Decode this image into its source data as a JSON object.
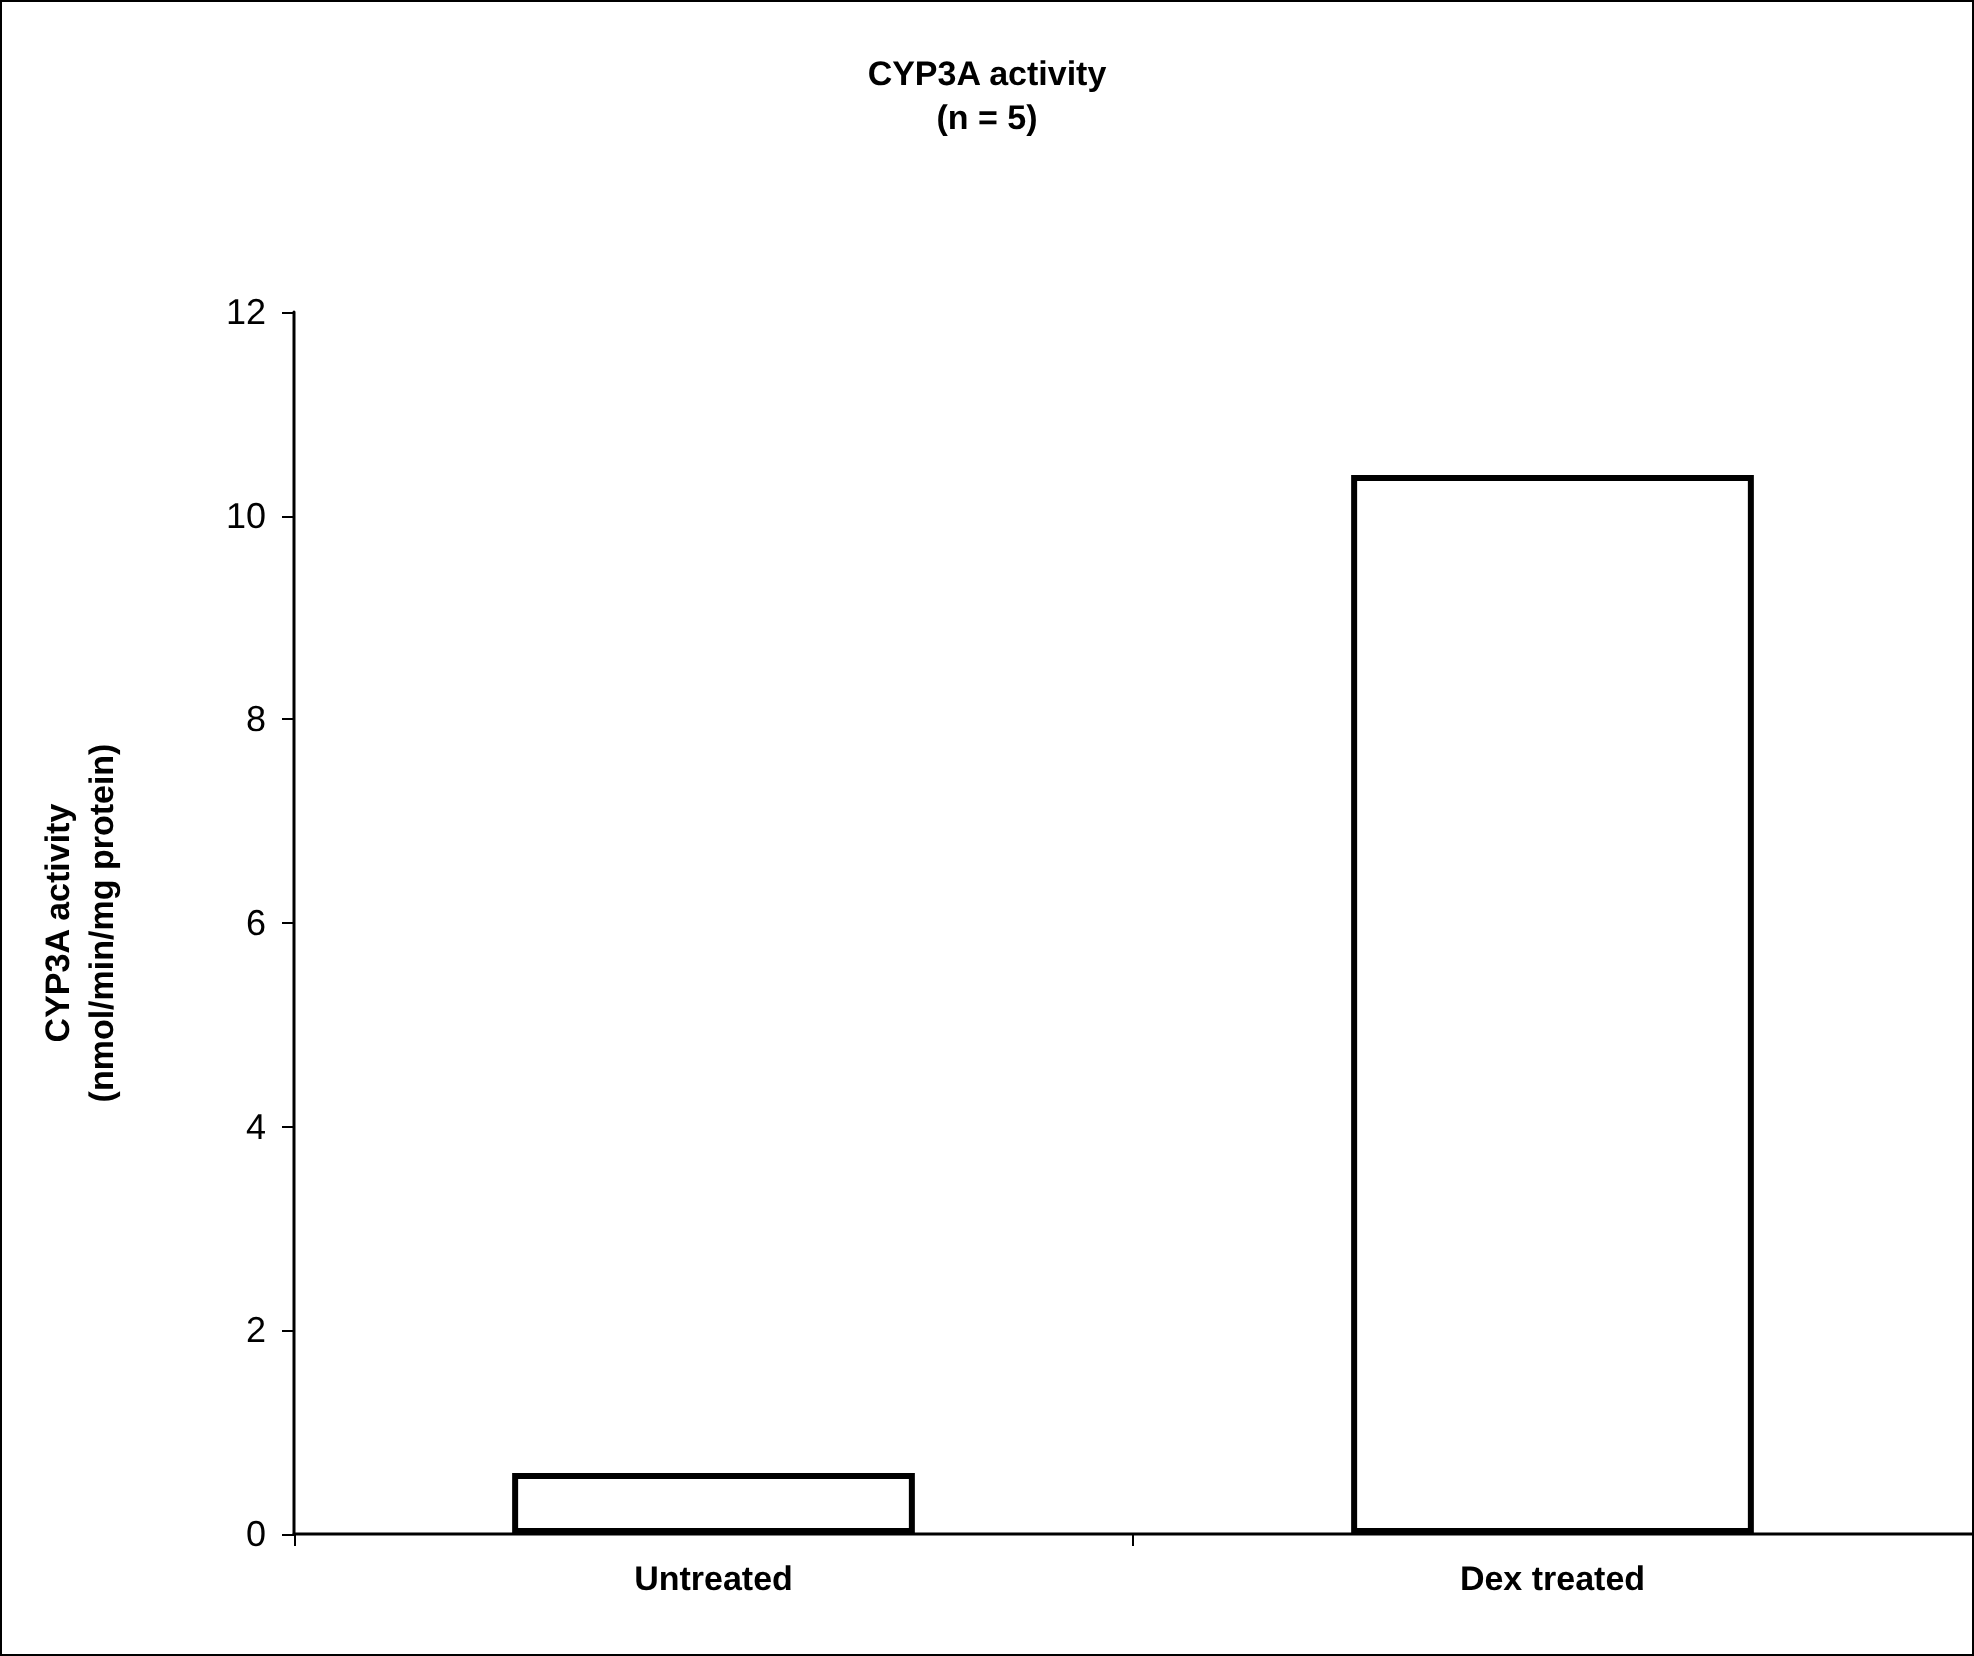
{
  "chart_data": {
    "type": "bar",
    "title": "CYP3A activity\n(n = 5)",
    "ylabel": "CYP3A activity\n(nmol/min/mg protein)",
    "categories": [
      "Untreated",
      "Dex treated"
    ],
    "values": [
      0.6,
      10.4
    ],
    "color": "#ffffff",
    "ylim": [
      0,
      12
    ],
    "yticks": [
      0,
      2,
      4,
      6,
      8,
      10,
      12
    ],
    "grid": false
  }
}
